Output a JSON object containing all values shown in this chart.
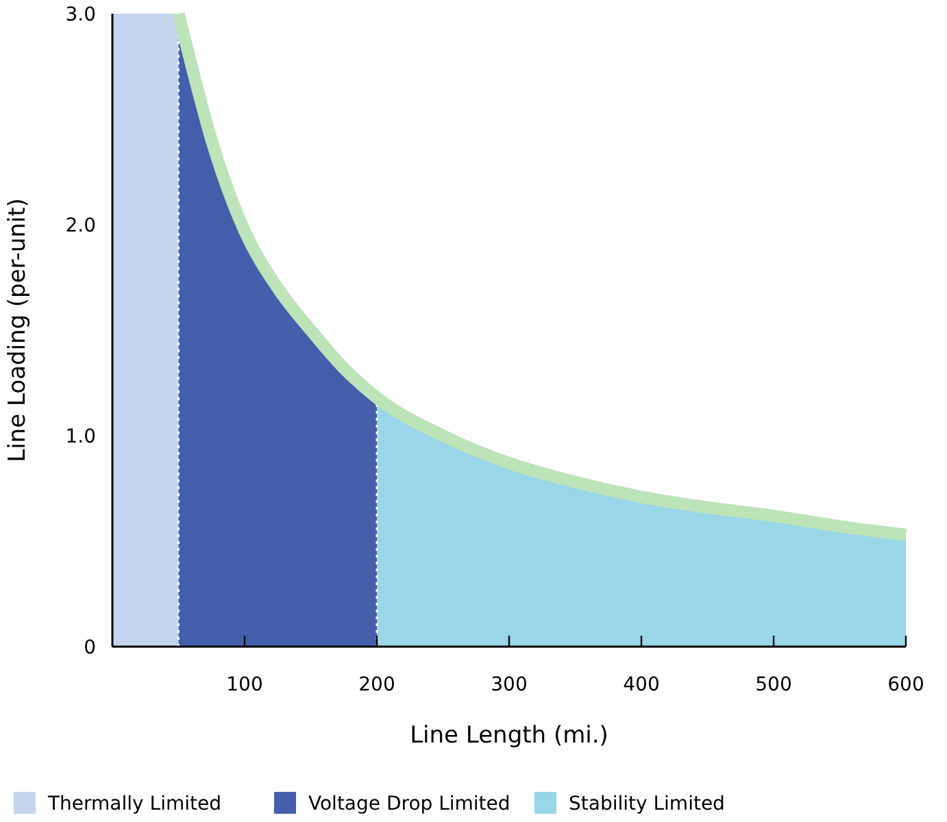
{
  "chart_data": {
    "type": "area",
    "xlabel": "Line Length (mi.)",
    "ylabel": "Line Loading (per-unit)",
    "xlim": [
      0,
      600
    ],
    "ylim": [
      0,
      3
    ],
    "xticks": [
      100,
      200,
      300,
      400,
      500,
      600
    ],
    "yticks": [
      0,
      {
        "value": 1,
        "label": "1.0"
      },
      {
        "value": 2,
        "label": "2.0"
      },
      {
        "value": 3,
        "label": "3.0"
      }
    ],
    "series": [
      {
        "name": "Thermally Limited",
        "color": "#c5d5ee",
        "x": [
          0,
          50
        ],
        "values": [
          3,
          3
        ]
      },
      {
        "name": "Voltage Drop Limited",
        "color": "#435fab",
        "x": [
          50,
          60,
          75,
          100,
          125,
          150,
          175,
          200
        ],
        "values": [
          3,
          2.75,
          2.4,
          1.97,
          1.7,
          1.5,
          1.32,
          1.18
        ]
      },
      {
        "name": "Stability Limited",
        "color": "#98d6e8",
        "x": [
          200,
          250,
          300,
          350,
          400,
          450,
          500,
          550,
          600
        ],
        "values": [
          1.18,
          1.0,
          0.87,
          0.78,
          0.71,
          0.66,
          0.62,
          0.57,
          0.53
        ]
      },
      {
        "type": "line",
        "color": "#bde3b9",
        "x": [
          50,
          60,
          75,
          100,
          125,
          150,
          175,
          200,
          250,
          300,
          350,
          400,
          450,
          500,
          550,
          600
        ],
        "values": [
          3,
          2.75,
          2.4,
          1.97,
          1.7,
          1.5,
          1.32,
          1.18,
          1.0,
          0.87,
          0.78,
          0.71,
          0.66,
          0.62,
          0.57,
          0.53
        ]
      }
    ],
    "ref_lines": [
      {
        "axis": "x",
        "value": 50,
        "color": "#ffffff",
        "line_style": "dotted"
      },
      {
        "axis": "x",
        "value": 200,
        "color": "#ffffff",
        "line_style": "dotted"
      }
    ],
    "legend": "bottom",
    "grid": false
  }
}
